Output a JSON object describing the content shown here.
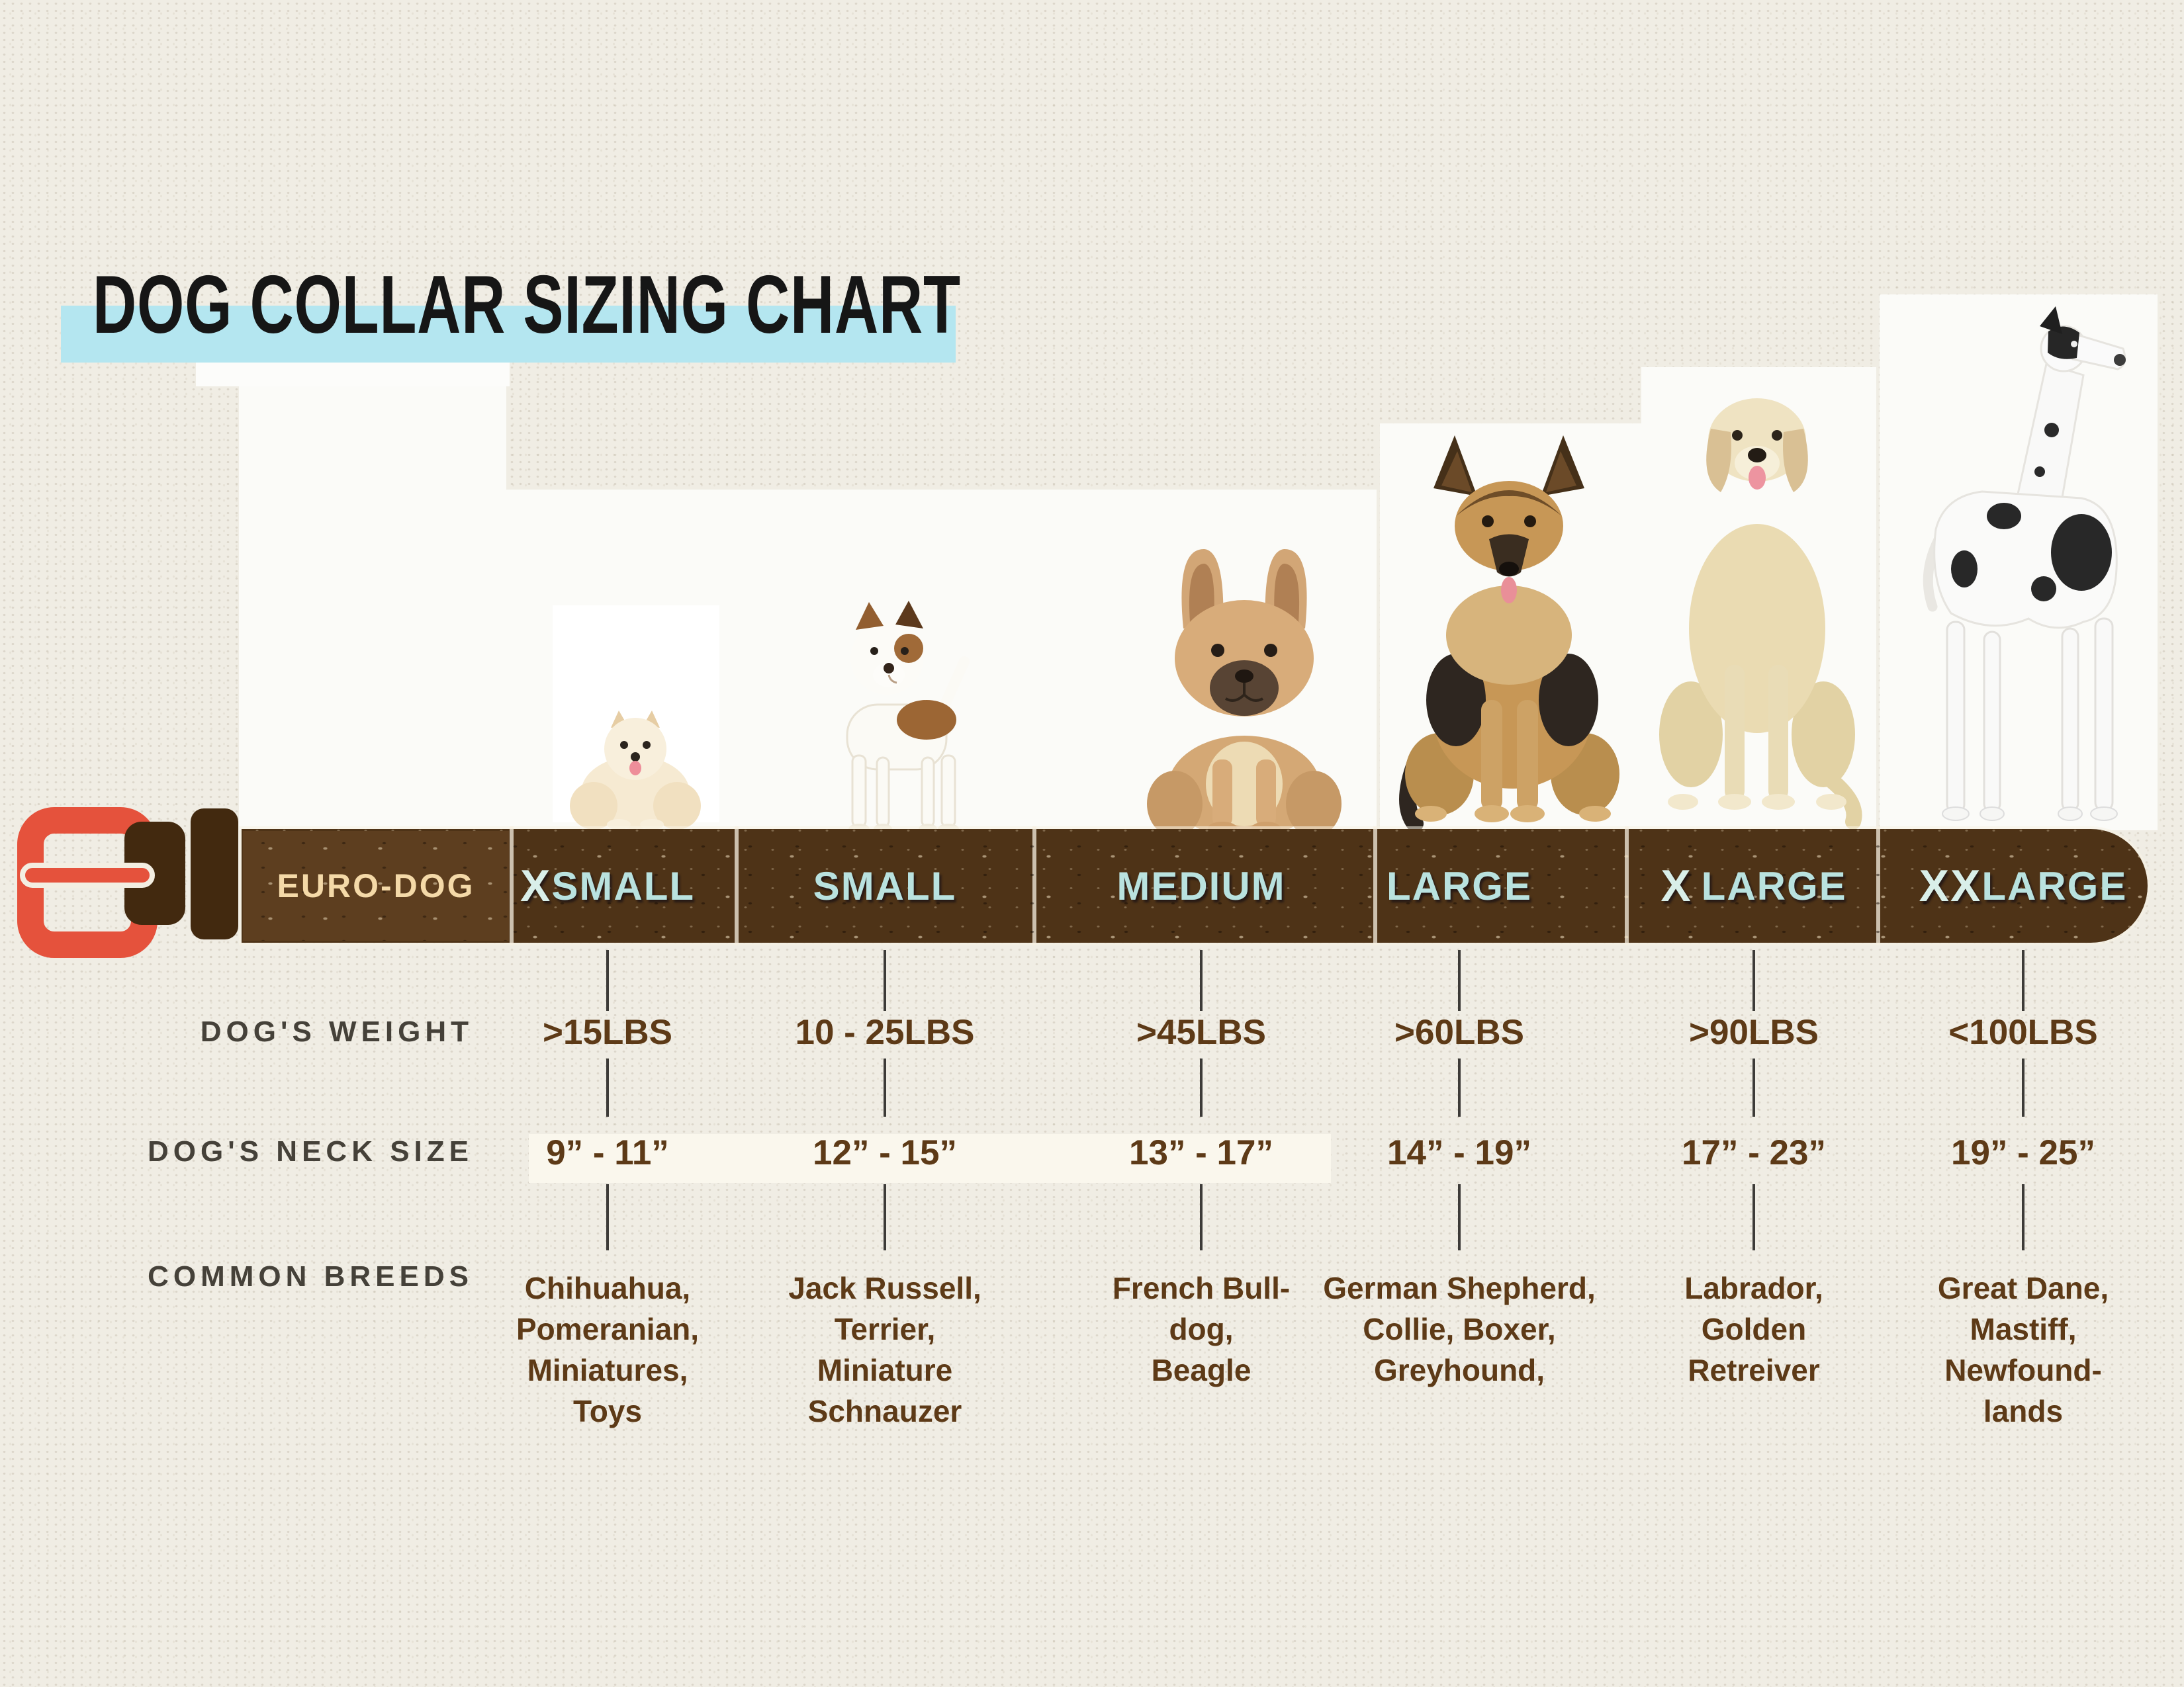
{
  "title": "DOG COLLAR SIZING CHART",
  "brand": "EURO-DOG",
  "rows": {
    "weight_label": "DOG'S WEIGHT",
    "neck_label": "DOG'S NECK SIZE",
    "breeds_label": "COMMON BREEDS"
  },
  "columns": [
    {
      "id": "xsmall",
      "size_prefix": "X",
      "size_rest": "SMALL",
      "size_gap": false,
      "weight": ">15LBS",
      "neck": "9” - 11”",
      "breeds": [
        "Chihuahua,",
        "Pomeranian,",
        "Miniatures,",
        "Toys"
      ],
      "dog_image": "pomeranian"
    },
    {
      "id": "small",
      "size_prefix": "",
      "size_rest": "SMALL",
      "size_gap": false,
      "weight": "10 - 25LBS",
      "neck": "12” - 15”",
      "breeds": [
        "Jack Russell,",
        "Terrier,",
        "Miniature",
        "Schnauzer"
      ],
      "dog_image": "jack-russell-terrier"
    },
    {
      "id": "medium",
      "size_prefix": "",
      "size_rest": "MEDIUM",
      "size_gap": false,
      "weight": ">45LBS",
      "neck": "13” - 17”",
      "breeds": [
        "French Bull-",
        "dog,",
        "Beagle"
      ],
      "dog_image": "french-bulldog"
    },
    {
      "id": "large",
      "size_prefix": "",
      "size_rest": "LARGE",
      "size_gap": false,
      "weight": ">60LBS",
      "neck": "14” - 19”",
      "breeds": [
        "German Shepherd,",
        "Collie, Boxer,",
        "Greyhound,"
      ],
      "dog_image": "german-shepherd"
    },
    {
      "id": "xlarge",
      "size_prefix": "X",
      "size_rest": "LARGE",
      "size_gap": true,
      "weight": ">90LBS",
      "neck": "17” - 23”",
      "breeds": [
        "Labrador,",
        "Golden",
        "Retreiver"
      ],
      "dog_image": "labrador-retriever"
    },
    {
      "id": "xxlarge",
      "size_prefix": "XX",
      "size_rest": "LARGE",
      "size_gap": false,
      "weight": "<100LBS",
      "neck": "19” - 25”",
      "breeds": [
        "Great Dane,",
        "Mastiff,",
        "Newfound-",
        "lands"
      ],
      "dog_image": "great-dane"
    }
  ],
  "colors": {
    "background": "#f0ede4",
    "title_highlight": "#b4e6f0",
    "belt_brown": "#4e3317",
    "brand_segment_brown": "#5d3e1f",
    "buckle_red": "#e5523c",
    "brand_text_cream": "#f4d9a8",
    "size_label_blue": "#b9e2df",
    "size_prefix_mint": "#d9efe9",
    "value_brown": "#5d3a17",
    "row_label_gray": "#454139"
  },
  "chart_data": {
    "type": "table",
    "title": "DOG COLLAR SIZING CHART",
    "columns": [
      "XSMALL",
      "SMALL",
      "MEDIUM",
      "LARGE",
      "X LARGE",
      "XXLARGE"
    ],
    "rows": [
      {
        "label": "DOG'S WEIGHT",
        "values": [
          ">15LBS",
          "10 - 25LBS",
          ">45LBS",
          ">60LBS",
          ">90LBS",
          "<100LBS"
        ]
      },
      {
        "label": "DOG'S NECK SIZE",
        "values": [
          "9” - 11”",
          "12” - 15”",
          "13” - 17”",
          "14” - 19”",
          "17” - 23”",
          "19” - 25”"
        ]
      },
      {
        "label": "COMMON BREEDS",
        "values": [
          "Chihuahua, Pomeranian, Miniatures, Toys",
          "Jack Russell, Terrier, Miniature Schnauzer",
          "French Bull-dog, Beagle",
          "German Shepherd, Collie, Boxer, Greyhound,",
          "Labrador, Golden Retreiver",
          "Great Dane, Mastiff, Newfound-lands"
        ]
      }
    ]
  }
}
